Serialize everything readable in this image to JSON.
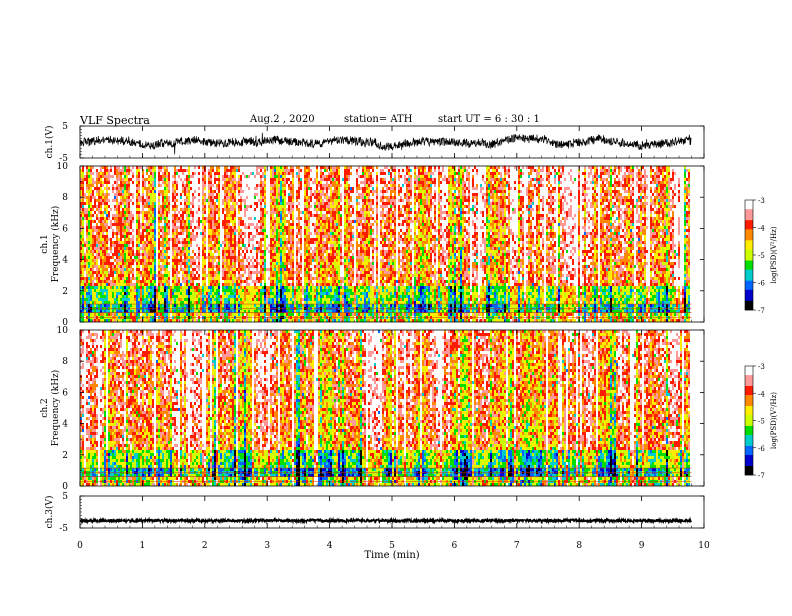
{
  "header": {
    "title": "VLF  Spectra",
    "date": "Aug.2  , 2020",
    "station": "station= ATH",
    "start_ut": "start  UT  =    6  : 30 : 1"
  },
  "chart_data": [
    {
      "type": "line",
      "panel": "ch1-waveform",
      "ylabel": "ch.1(V)",
      "ylim": [
        -5,
        5
      ],
      "yticks": [
        "5",
        "-5"
      ],
      "xlim": [
        0,
        9.8
      ],
      "trace_color": "#000000"
    },
    {
      "type": "heatmap",
      "panel": "ch1-spectrogram",
      "ylabel": "ch.1\nFrequency  (kHz)",
      "ylim": [
        0,
        10
      ],
      "yticks": [
        "0",
        "2",
        "4",
        "6",
        "8",
        "10"
      ],
      "xlim": [
        0,
        9.8
      ],
      "colorbar": {
        "label": "log(PSD)(V²/Hz)",
        "range": [
          -7,
          -3
        ],
        "ticks": [
          "-3",
          "-4",
          "-5",
          "-6",
          "-7"
        ]
      }
    },
    {
      "type": "heatmap",
      "panel": "ch2-spectrogram",
      "ylabel": "ch.2\nFrequency  (kHz)",
      "ylim": [
        0,
        10
      ],
      "yticks": [
        "0",
        "2",
        "4",
        "6",
        "8",
        "10"
      ],
      "xlim": [
        0,
        9.8
      ],
      "colorbar": {
        "label": "log(PSD)(V²/Hz)",
        "range": [
          -7,
          -3
        ],
        "ticks": [
          "-3",
          "-4",
          "-5",
          "-6",
          "-7"
        ]
      }
    },
    {
      "type": "line",
      "panel": "ch3-waveform",
      "ylabel": "ch.3(V)",
      "ylim": [
        -5,
        5
      ],
      "yticks": [
        "5",
        "-5"
      ],
      "xlim": [
        0,
        9.8
      ],
      "trace_color": "#000000"
    }
  ],
  "x_axis": {
    "xlabel": "Time  (min)",
    "xlim": [
      0,
      10
    ],
    "ticks": [
      "0",
      "1",
      "2",
      "3",
      "4",
      "5",
      "6",
      "7",
      "8",
      "9",
      "10"
    ]
  },
  "colors": {
    "psd_scale": [
      "#000000",
      "#0000cc",
      "#0066ff",
      "#00cccc",
      "#00dd00",
      "#ccff00",
      "#ffee00",
      "#ff8800",
      "#ff1a00",
      "#ff9999",
      "#ffffff"
    ]
  }
}
